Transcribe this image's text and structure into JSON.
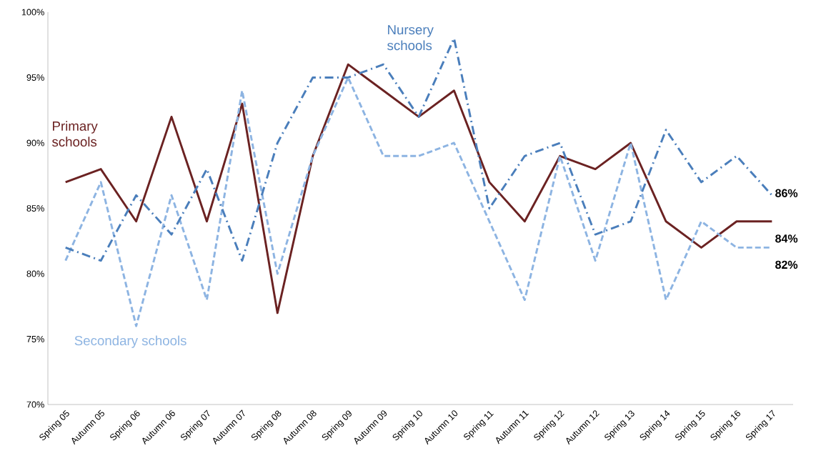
{
  "chart_data": {
    "type": "line",
    "categories": [
      "Spring 05",
      "Autumn 05",
      "Spring 06",
      "Autumn 06",
      "Spring 07",
      "Autumn 07",
      "Spring 08",
      "Autumn 08",
      "Spring 09",
      "Autumn 09",
      "Spring 10",
      "Autumn 10",
      "Spring 11",
      "Autumn 11",
      "Spring 12",
      "Autumn 12",
      "Spring 13",
      "Spring 14",
      "Spring 15",
      "Spring 16",
      "Spring 17"
    ],
    "series": [
      {
        "name": "Primary schools",
        "color": "#6b2222",
        "line_style": "solid",
        "values": [
          87,
          88,
          84,
          92,
          84,
          93,
          77,
          89,
          96,
          94,
          92,
          94,
          87,
          84,
          89,
          88,
          90,
          84,
          82,
          84,
          84
        ]
      },
      {
        "name": "Secondary schools",
        "color": "#8db4e2",
        "line_style": "dashed",
        "values": [
          81,
          87,
          76,
          86,
          78,
          94,
          80,
          89,
          95,
          89,
          89,
          90,
          84,
          78,
          89,
          81,
          90,
          78,
          84,
          82,
          82
        ]
      },
      {
        "name": "Nursery schools",
        "color": "#4a7ebb",
        "line_style": "dashdot",
        "values": [
          82,
          81,
          86,
          83,
          88,
          81,
          90,
          95,
          95,
          96,
          92,
          98,
          85,
          89,
          90,
          83,
          84,
          91,
          87,
          89,
          86
        ]
      }
    ],
    "ylim": [
      70,
      100
    ],
    "yticks": [
      {
        "value": 70,
        "label": "70%"
      },
      {
        "value": 75,
        "label": "75%"
      },
      {
        "value": 80,
        "label": "80%"
      },
      {
        "value": 85,
        "label": "85%"
      },
      {
        "value": 90,
        "label": "90%"
      },
      {
        "value": 95,
        "label": "95%"
      },
      {
        "value": 100,
        "label": "100%"
      }
    ],
    "annotations": [
      {
        "text": "86%",
        "x": "Spring 17",
        "y": 86
      },
      {
        "text": "84%",
        "x": "Spring 17",
        "y": 84
      },
      {
        "text": "82%",
        "x": "Spring 17",
        "y": 82
      }
    ],
    "grid": false,
    "legend": false,
    "marker": "none"
  }
}
